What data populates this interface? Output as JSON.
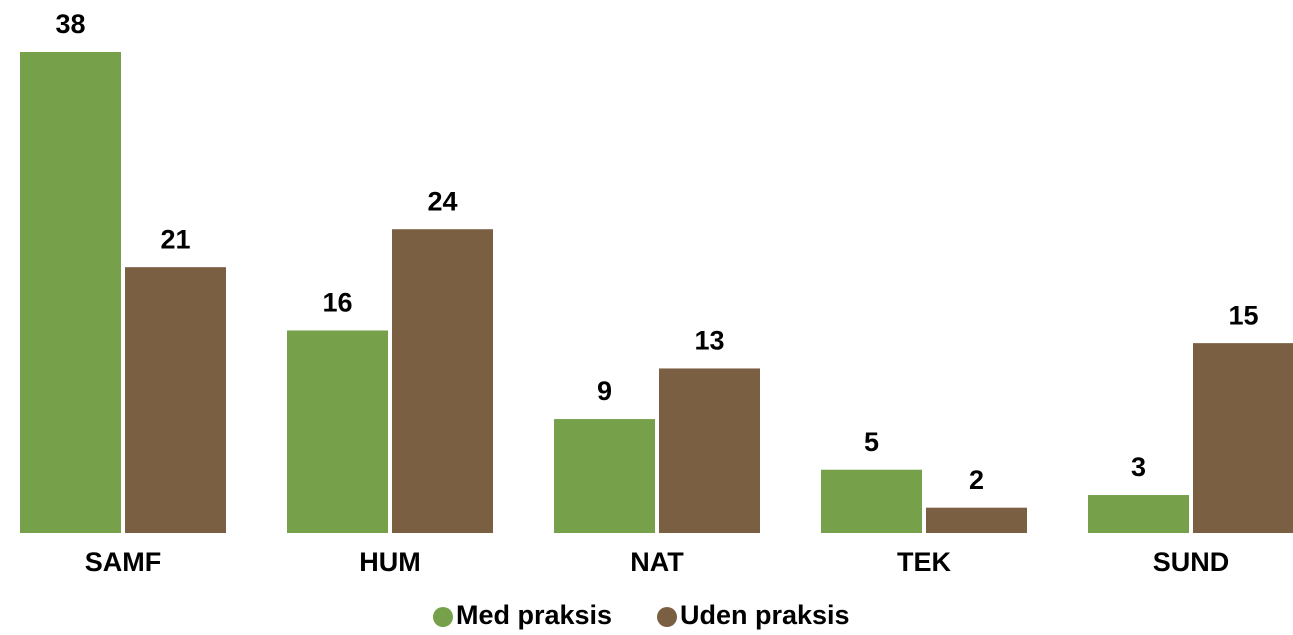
{
  "chart_data": {
    "type": "bar",
    "categories": [
      "SAMF",
      "HUM",
      "NAT",
      "TEK",
      "SUND"
    ],
    "series": [
      {
        "name": "Med praksis",
        "color": "#77a04b",
        "values": [
          38,
          16,
          9,
          5,
          3
        ]
      },
      {
        "name": "Uden praksis",
        "color": "#7b5f43",
        "values": [
          21,
          24,
          13,
          2,
          15
        ]
      }
    ],
    "legend": "bottom"
  }
}
